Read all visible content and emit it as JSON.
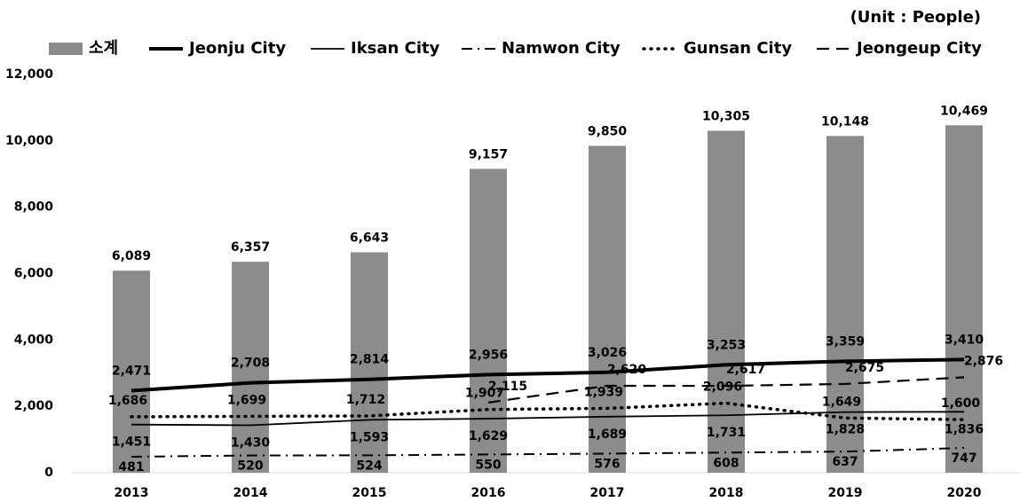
{
  "chart_data": {
    "type": "bar-line",
    "unit_label": "(Unit : People)",
    "categories": [
      "2013",
      "2014",
      "2015",
      "2016",
      "2017",
      "2018",
      "2019",
      "2020"
    ],
    "ylim": [
      0,
      12000
    ],
    "yticks": [
      0,
      {
        "value": 2000,
        "label": "2,000"
      },
      {
        "value": 4000,
        "label": "4,000"
      },
      {
        "value": 6000,
        "label": "6,000"
      },
      {
        "value": 8000,
        "label": "8,000"
      },
      {
        "value": 10000,
        "label": "10,000"
      },
      {
        "value": 12000,
        "label": "12,000"
      }
    ],
    "grid": false,
    "legend": "top",
    "series": [
      {
        "name": "소계",
        "style": "bar",
        "color": "#8c8c8c",
        "values": [
          6089,
          6357,
          6643,
          9157,
          9850,
          10305,
          10148,
          10469
        ],
        "value_labels": [
          "6,089",
          "6,357",
          "6,643",
          "9,157",
          "9,850",
          "10,305",
          "10,148",
          "10,469"
        ]
      },
      {
        "name": "Jeonju City",
        "style": "solid",
        "width": 4,
        "color": "#000000",
        "values": [
          2471,
          2708,
          2814,
          2956,
          3026,
          3253,
          3359,
          3410
        ],
        "value_labels": [
          "2,471",
          "2,708",
          "2,814",
          "2,956",
          "3,026",
          "3,253",
          "3,359",
          "3,410"
        ]
      },
      {
        "name": "Iksan City",
        "style": "solid",
        "width": 1.8,
        "color": "#000000",
        "values": [
          1451,
          1430,
          1593,
          1629,
          1689,
          1731,
          1828,
          1836
        ],
        "value_labels": [
          "1,451",
          "1,430",
          "1,593",
          "1,629",
          "1,689",
          "1,731",
          "1,828",
          "1,836"
        ]
      },
      {
        "name": "Namwon City",
        "style": "dashdot",
        "width": 2,
        "color": "#000000",
        "values": [
          481,
          520,
          524,
          550,
          576,
          608,
          637,
          747
        ],
        "value_labels": [
          "481",
          "520",
          "524",
          "550",
          "576",
          "608",
          "637",
          "747"
        ]
      },
      {
        "name": "Gunsan City",
        "style": "dotted",
        "width": 3.5,
        "color": "#000000",
        "values": [
          1686,
          1699,
          1712,
          1907,
          1939,
          2096,
          1649,
          1600
        ],
        "value_labels": [
          "1,686",
          "1,699",
          "1,712",
          "1,907",
          "1,939",
          "2,096",
          "1,649",
          "1,600"
        ]
      },
      {
        "name": "Jeongeup City",
        "style": "dashed",
        "width": 2.2,
        "color": "#000000",
        "values": [
          null,
          null,
          null,
          2115,
          2620,
          2617,
          2675,
          2876
        ],
        "value_labels": [
          null,
          null,
          null,
          "2,115",
          "2,620",
          "2,617",
          "2,675",
          "2,876"
        ]
      }
    ]
  }
}
